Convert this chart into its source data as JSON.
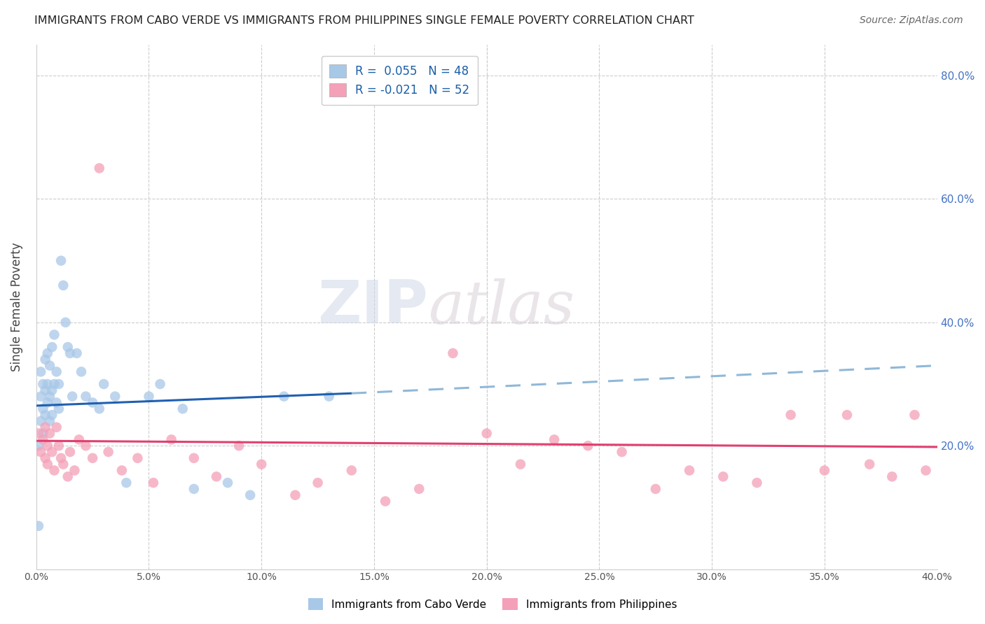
{
  "title": "IMMIGRANTS FROM CABO VERDE VS IMMIGRANTS FROM PHILIPPINES SINGLE FEMALE POVERTY CORRELATION CHART",
  "source": "Source: ZipAtlas.com",
  "ylabel": "Single Female Poverty",
  "xlim": [
    0.0,
    0.4
  ],
  "ylim": [
    0.0,
    0.85
  ],
  "legend_label_blue": "R =  0.055   N = 48",
  "legend_label_pink": "R = -0.021   N = 52",
  "bottom_legend_blue": "Immigrants from Cabo Verde",
  "bottom_legend_pink": "Immigrants from Philippines",
  "color_blue": "#a8c8e8",
  "color_pink": "#f4a0b8",
  "color_blue_line": "#2060b0",
  "color_pink_line": "#e04070",
  "color_blue_dashed": "#90b8d8",
  "background_color": "#ffffff",
  "grid_color": "#cccccc",
  "cabo_verde_x": [
    0.001,
    0.001,
    0.002,
    0.002,
    0.002,
    0.003,
    0.003,
    0.003,
    0.004,
    0.004,
    0.004,
    0.005,
    0.005,
    0.005,
    0.006,
    0.006,
    0.006,
    0.007,
    0.007,
    0.007,
    0.008,
    0.008,
    0.009,
    0.009,
    0.01,
    0.01,
    0.011,
    0.012,
    0.013,
    0.014,
    0.015,
    0.016,
    0.018,
    0.02,
    0.022,
    0.025,
    0.028,
    0.03,
    0.035,
    0.04,
    0.05,
    0.055,
    0.065,
    0.07,
    0.085,
    0.095,
    0.11,
    0.13
  ],
  "cabo_verde_y": [
    0.07,
    0.2,
    0.24,
    0.28,
    0.32,
    0.22,
    0.26,
    0.3,
    0.25,
    0.29,
    0.34,
    0.27,
    0.3,
    0.35,
    0.24,
    0.28,
    0.33,
    0.25,
    0.29,
    0.36,
    0.3,
    0.38,
    0.27,
    0.32,
    0.26,
    0.3,
    0.5,
    0.46,
    0.4,
    0.36,
    0.35,
    0.28,
    0.35,
    0.32,
    0.28,
    0.27,
    0.26,
    0.3,
    0.28,
    0.14,
    0.28,
    0.3,
    0.26,
    0.13,
    0.14,
    0.12,
    0.28,
    0.28
  ],
  "philippines_x": [
    0.001,
    0.002,
    0.003,
    0.004,
    0.004,
    0.005,
    0.005,
    0.006,
    0.007,
    0.008,
    0.009,
    0.01,
    0.011,
    0.012,
    0.014,
    0.015,
    0.017,
    0.019,
    0.022,
    0.025,
    0.028,
    0.032,
    0.038,
    0.045,
    0.052,
    0.06,
    0.07,
    0.08,
    0.09,
    0.1,
    0.115,
    0.125,
    0.14,
    0.155,
    0.17,
    0.185,
    0.2,
    0.215,
    0.23,
    0.245,
    0.26,
    0.275,
    0.29,
    0.305,
    0.32,
    0.335,
    0.35,
    0.36,
    0.37,
    0.38,
    0.39,
    0.395
  ],
  "philippines_y": [
    0.22,
    0.19,
    0.21,
    0.18,
    0.23,
    0.2,
    0.17,
    0.22,
    0.19,
    0.16,
    0.23,
    0.2,
    0.18,
    0.17,
    0.15,
    0.19,
    0.16,
    0.21,
    0.2,
    0.18,
    0.65,
    0.19,
    0.16,
    0.18,
    0.14,
    0.21,
    0.18,
    0.15,
    0.2,
    0.17,
    0.12,
    0.14,
    0.16,
    0.11,
    0.13,
    0.35,
    0.22,
    0.17,
    0.21,
    0.2,
    0.19,
    0.13,
    0.16,
    0.15,
    0.14,
    0.25,
    0.16,
    0.25,
    0.17,
    0.15,
    0.25,
    0.16
  ],
  "blue_line_x0": 0.0,
  "blue_line_x_solid_end": 0.14,
  "blue_line_x_dashed_end": 0.4,
  "blue_line_y0": 0.265,
  "blue_line_y_solid_end": 0.285,
  "blue_line_y_dashed_end": 0.33,
  "pink_line_x0": 0.0,
  "pink_line_x_end": 0.4,
  "pink_line_y0": 0.208,
  "pink_line_y_end": 0.198
}
